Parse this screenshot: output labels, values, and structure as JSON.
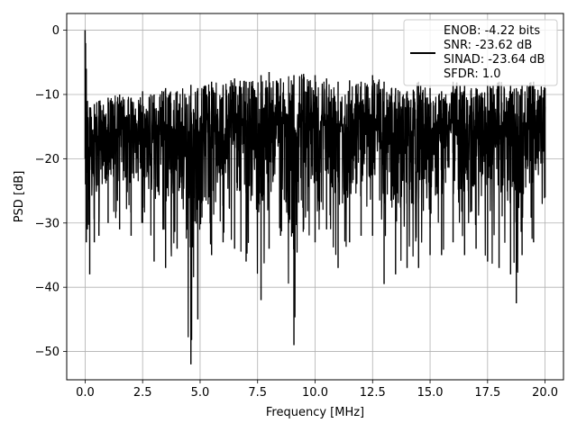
{
  "chart_data": {
    "type": "line",
    "title": "",
    "xlabel": "Frequency [MHz]",
    "ylabel": "PSD [dB]",
    "xlim": [
      -0.8,
      20.8
    ],
    "ylim": [
      -54.4,
      2.6
    ],
    "xticks": [
      0.0,
      2.5,
      5.0,
      7.5,
      10.0,
      12.5,
      15.0,
      17.5,
      20.0
    ],
    "xtick_labels": [
      "0.0",
      "2.5",
      "5.0",
      "7.5",
      "10.0",
      "12.5",
      "15.0",
      "17.5",
      "20.0"
    ],
    "yticks": [
      0,
      -10,
      -20,
      -30,
      -40,
      -50
    ],
    "ytick_labels": [
      "0",
      "−10",
      "−20",
      "−30",
      "−40",
      "−50"
    ],
    "grid": true,
    "legend_position": "upper right",
    "legend_lines": [
      "ENOB: -4.22 bits",
      "SNR: -23.62 dB",
      "SINAD: -23.64 dB",
      "SFDR: 1.0"
    ],
    "series": [
      {
        "color": "#000000",
        "description": "noise-like power spectral density, peak 0 dB at DC, typical band -10 to -28 dB",
        "x": [
          0.0,
          0.02,
          0.05,
          0.1,
          0.2,
          0.4,
          0.6,
          1.0,
          1.5,
          2.0,
          2.5,
          3.0,
          3.5,
          4.0,
          4.6,
          4.9,
          5.5,
          6.0,
          6.5,
          7.0,
          7.65,
          8.0,
          8.5,
          9.08,
          9.5,
          10.0,
          10.5,
          11.0,
          11.5,
          12.0,
          12.5,
          13.0,
          13.5,
          14.0,
          14.5,
          15.0,
          15.5,
          16.0,
          16.5,
          17.0,
          17.5,
          18.0,
          18.5,
          18.75,
          19.0,
          19.5,
          20.0
        ],
        "y_upper": [
          0.0,
          -2.0,
          -6.0,
          -11.0,
          -12.0,
          -11.5,
          -11.0,
          -10.5,
          -10.0,
          -10.5,
          -9.5,
          -10.0,
          -9.0,
          -9.5,
          -8.5,
          -9.0,
          -8.0,
          -8.5,
          -7.5,
          -8.0,
          -7.0,
          -6.5,
          -7.5,
          -7.0,
          -6.8,
          -7.0,
          -7.5,
          -8.0,
          -7.8,
          -8.0,
          -7.0,
          -8.0,
          -9.0,
          -9.5,
          -8.0,
          -9.0,
          -9.5,
          -8.0,
          -8.5,
          -9.0,
          -8.5,
          -8.0,
          -8.5,
          -9.0,
          -8.5,
          -8.0,
          -9.0
        ],
        "y_lower": [
          -20.0,
          -24.0,
          -33.0,
          -31.0,
          -38.0,
          -33.0,
          -32.0,
          -30.0,
          -31.0,
          -32.0,
          -30.0,
          -36.0,
          -37.0,
          -34.0,
          -52.0,
          -45.0,
          -35.0,
          -33.0,
          -34.0,
          -36.0,
          -42.0,
          -34.0,
          -32.0,
          -49.0,
          -31.0,
          -33.0,
          -31.0,
          -37.0,
          -33.0,
          -32.0,
          -32.0,
          -39.5,
          -38.0,
          -37.0,
          -37.0,
          -35.0,
          -35.0,
          -33.0,
          -35.0,
          -34.0,
          -36.0,
          -37.0,
          -38.0,
          -42.5,
          -35.0,
          -33.0,
          -26.0
        ]
      }
    ]
  }
}
